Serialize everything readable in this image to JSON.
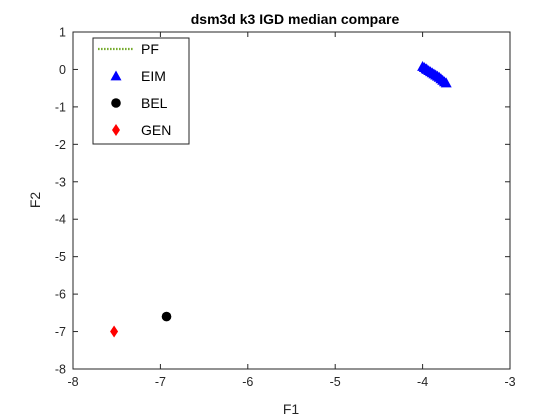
{
  "chart_data": {
    "type": "scatter",
    "title": "dsm3d k3 IGD median compare",
    "xlabel": "F1",
    "ylabel": "F2",
    "xlim": [
      -8,
      -3
    ],
    "ylim": [
      -8,
      1
    ],
    "xticks": [
      "-8",
      "-7",
      "-6",
      "-5",
      "-4",
      "-3"
    ],
    "yticks": [
      "1",
      "0",
      "-1",
      "-2",
      "-3",
      "-4",
      "-5",
      "-6",
      "-7",
      "-8"
    ],
    "grid": false,
    "legend_position": "top-left",
    "series": [
      {
        "name": "PF",
        "marker": "dotted-line",
        "color": "#77ac30",
        "points": []
      },
      {
        "name": "EIM",
        "marker": "triangle",
        "color": "#0000ff",
        "points": [
          [
            -4.0,
            0.08
          ],
          [
            -3.98,
            0.05
          ],
          [
            -3.96,
            0.02
          ],
          [
            -3.95,
            0.0
          ],
          [
            -3.93,
            -0.03
          ],
          [
            -3.91,
            -0.06
          ],
          [
            -3.89,
            -0.09
          ],
          [
            -3.87,
            -0.12
          ],
          [
            -3.85,
            -0.15
          ],
          [
            -3.83,
            -0.18
          ],
          [
            -3.81,
            -0.21
          ],
          [
            -3.79,
            -0.25
          ],
          [
            -3.77,
            -0.29
          ],
          [
            -3.75,
            -0.33
          ],
          [
            -3.73,
            -0.36
          ]
        ]
      },
      {
        "name": "BEL",
        "marker": "circle",
        "color": "#000000",
        "points": [
          [
            -6.93,
            -6.6
          ]
        ]
      },
      {
        "name": "GEN",
        "marker": "diamond",
        "color": "#ff0000",
        "points": [
          [
            -7.53,
            -7.0
          ]
        ]
      }
    ]
  }
}
